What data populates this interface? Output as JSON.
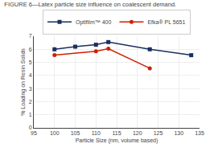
{
  "chart_data": {
    "type": "line",
    "title": "FIGURE 6—Latex particle size influence on coalescent demand.",
    "x_label": "Particle Size (nm, volume based)",
    "y_label": "% Loading on Resin Solids",
    "series": [
      {
        "name": "Optifilm™ 400",
        "color": "#1a3060",
        "marker": "square",
        "line_style": "solid",
        "x": [
          100,
          105,
          110,
          113,
          123,
          133
        ],
        "values": [
          6.0,
          6.2,
          6.35,
          6.55,
          6.0,
          5.55
        ]
      },
      {
        "name": "Efka® PL 5651",
        "color": "#cc2200",
        "marker": "circle",
        "line_style": "solid",
        "x": [
          100,
          110,
          113,
          123
        ],
        "values": [
          5.55,
          5.85,
          6.05,
          4.55
        ]
      }
    ],
    "xlim": [
      95,
      135
    ],
    "ylim": [
      0,
      7
    ],
    "xticks": [
      95,
      100,
      105,
      110,
      115,
      120,
      125,
      130,
      135
    ],
    "yticks": [
      0,
      1,
      2,
      3,
      4,
      5,
      6,
      7
    ],
    "grid": true,
    "legend": "top"
  }
}
